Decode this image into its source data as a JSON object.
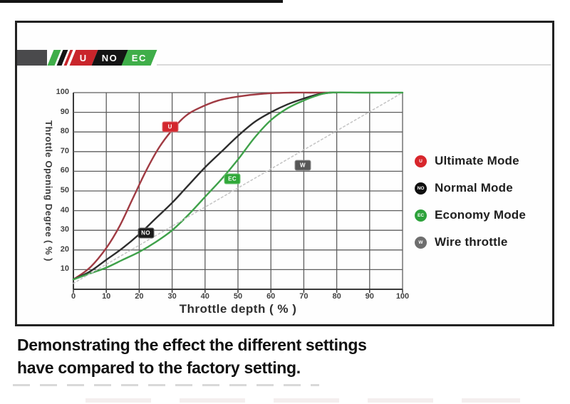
{
  "logo": {
    "bar_color": "#4a4a4c",
    "stripes": [
      {
        "name": "green-stripe",
        "color": "#3fae49",
        "width": 10
      },
      {
        "name": "black-stripe",
        "color": "#141414",
        "width": 7
      },
      {
        "name": "red-stripe",
        "color": "#c9252b",
        "width": 4
      }
    ],
    "segments": [
      {
        "label": "U",
        "bg": "#c9252b"
      },
      {
        "label": "NO",
        "bg": "#141414"
      },
      {
        "label": "EC",
        "bg": "#3fae49"
      }
    ]
  },
  "chart_data": {
    "type": "line",
    "title": "",
    "xlabel": "Throttle depth ( % )",
    "ylabel": "Throttle Opening Degree ( % )",
    "xlim": [
      0,
      100
    ],
    "ylim": [
      0,
      100
    ],
    "grid": true,
    "legend_position": "right",
    "xticks": [
      0,
      10,
      20,
      30,
      40,
      50,
      60,
      70,
      80,
      90,
      100
    ],
    "yticks": [
      10,
      20,
      30,
      40,
      50,
      60,
      70,
      80,
      90,
      100
    ],
    "grid_color": "#5e5e5e",
    "axis_color": "#3a3a3a",
    "series": [
      {
        "id": "ultimate",
        "name": "Ultimate Mode",
        "color": "#a03b43",
        "style": "solid",
        "points": [
          [
            0,
            5
          ],
          [
            5,
            11
          ],
          [
            10,
            21
          ],
          [
            14,
            32
          ],
          [
            18,
            46
          ],
          [
            22,
            60
          ],
          [
            26,
            72
          ],
          [
            30,
            81
          ],
          [
            34,
            88
          ],
          [
            38,
            92
          ],
          [
            44,
            96
          ],
          [
            50,
            98
          ],
          [
            58,
            99.5
          ],
          [
            66,
            100
          ],
          [
            72,
            100
          ],
          [
            78,
            100
          ]
        ]
      },
      {
        "id": "normal",
        "name": "Normal Mode",
        "color": "#2d2d2d",
        "style": "solid",
        "points": [
          [
            0,
            5
          ],
          [
            5,
            9
          ],
          [
            10,
            15
          ],
          [
            15,
            21
          ],
          [
            20,
            28
          ],
          [
            25,
            36
          ],
          [
            30,
            44
          ],
          [
            35,
            53
          ],
          [
            40,
            62
          ],
          [
            45,
            70
          ],
          [
            50,
            78
          ],
          [
            55,
            85
          ],
          [
            60,
            90
          ],
          [
            65,
            94
          ],
          [
            70,
            97
          ],
          [
            74,
            99
          ],
          [
            78,
            100
          ],
          [
            80,
            100
          ]
        ]
      },
      {
        "id": "economy",
        "name": "Economy Mode",
        "color": "#3fa14a",
        "style": "solid",
        "points": [
          [
            0,
            5
          ],
          [
            5,
            8
          ],
          [
            10,
            11
          ],
          [
            15,
            15
          ],
          [
            20,
            19
          ],
          [
            25,
            24
          ],
          [
            30,
            30
          ],
          [
            35,
            38
          ],
          [
            40,
            47
          ],
          [
            45,
            56
          ],
          [
            50,
            66
          ],
          [
            55,
            77
          ],
          [
            60,
            86
          ],
          [
            65,
            92
          ],
          [
            70,
            96
          ],
          [
            74,
            98.5
          ],
          [
            78,
            100
          ],
          [
            88,
            100
          ],
          [
            100,
            100
          ]
        ]
      },
      {
        "id": "wire",
        "name": "Wire throttle",
        "color": "#c6c6c6",
        "style": "dotted",
        "points": [
          [
            0,
            3
          ],
          [
            100,
            100
          ]
        ]
      }
    ],
    "badges": [
      {
        "series": "ultimate",
        "label": "U",
        "x": 29.4,
        "y": 82.5,
        "bg": "#d3262d"
      },
      {
        "series": "normal",
        "label": "NO",
        "x": 22,
        "y": 28.5,
        "bg": "#1b1b1b"
      },
      {
        "series": "economy",
        "label": "EC",
        "x": 48.3,
        "y": 56,
        "bg": "#2fa838"
      },
      {
        "series": "wire",
        "label": "W",
        "x": 69.7,
        "y": 63,
        "bg": "#575757"
      }
    ]
  },
  "legend": {
    "items": [
      {
        "marker": "U",
        "color": "#d8262c",
        "label": "Ultimate Mode"
      },
      {
        "marker": "NO",
        "color": "#0f0f0f",
        "label": "Normal Mode"
      },
      {
        "marker": "EC",
        "color": "#2da23b",
        "label": "Economy Mode"
      },
      {
        "marker": "W",
        "color": "#6e6e6e",
        "label": "Wire throttle"
      }
    ]
  },
  "caption": {
    "line1": "Demonstrating the effect the different settings",
    "line2": "have compared to the factory setting."
  }
}
